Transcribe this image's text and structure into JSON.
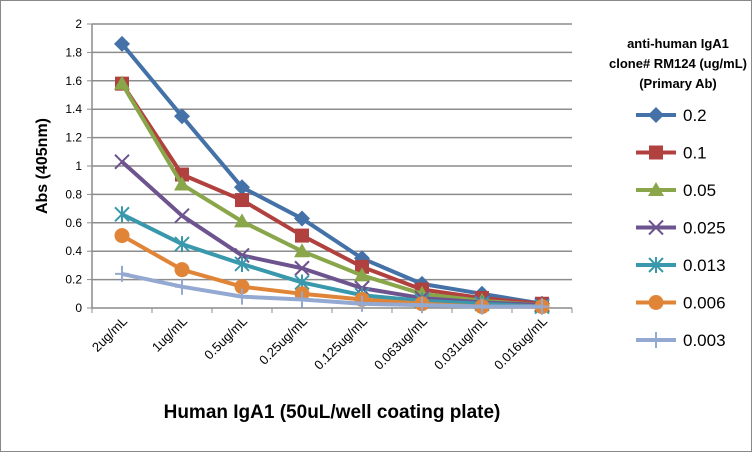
{
  "chart_data": {
    "type": "line",
    "title": "",
    "xlabel": "Human IgA1 (50uL/well coating plate)",
    "ylabel": "Abs (405nm)",
    "ylim": [
      0,
      2
    ],
    "yticks": [
      "0",
      "0.2",
      "0.4",
      "0.6",
      "0.8",
      "1",
      "1.2",
      "1.4",
      "1.6",
      "1.8",
      "2"
    ],
    "grid": true,
    "legend_placement": "right",
    "legend_title": [
      "anti-human IgA1",
      "clone# RM124 (ug/mL)",
      "(Primary Ab)"
    ],
    "categories": [
      "2ug/mL",
      "1ug/mL",
      "0.5ug/mL",
      "0.25ug/mL",
      "0.125ug/mL",
      "0.063ug/mL",
      "0.031ug/mL",
      "0.016ug/mL"
    ],
    "series": [
      {
        "name": "0.2",
        "color": "#4472a8",
        "marker": "diamond",
        "values": [
          1.86,
          1.35,
          0.85,
          0.63,
          0.35,
          0.17,
          0.1,
          0.03
        ]
      },
      {
        "name": "0.1",
        "color": "#b0413e",
        "marker": "square",
        "values": [
          1.58,
          0.94,
          0.76,
          0.51,
          0.29,
          0.13,
          0.07,
          0.03
        ]
      },
      {
        "name": "0.05",
        "color": "#8aa64a",
        "marker": "triangle",
        "values": [
          1.58,
          0.87,
          0.61,
          0.4,
          0.23,
          0.1,
          0.05,
          0.02
        ]
      },
      {
        "name": "0.025",
        "color": "#6e548f",
        "marker": "x",
        "values": [
          1.03,
          0.65,
          0.37,
          0.28,
          0.14,
          0.07,
          0.04,
          0.02
        ]
      },
      {
        "name": "0.013",
        "color": "#3a98ad",
        "marker": "star",
        "values": [
          0.66,
          0.45,
          0.31,
          0.18,
          0.09,
          0.05,
          0.03,
          0.01
        ]
      },
      {
        "name": "0.006",
        "color": "#e08537",
        "marker": "circle",
        "values": [
          0.51,
          0.27,
          0.15,
          0.1,
          0.06,
          0.03,
          0.01,
          0.01
        ]
      },
      {
        "name": "0.003",
        "color": "#93a9d2",
        "marker": "plus",
        "values": [
          0.24,
          0.15,
          0.08,
          0.06,
          0.03,
          0.02,
          0.01,
          0.01
        ]
      }
    ]
  }
}
